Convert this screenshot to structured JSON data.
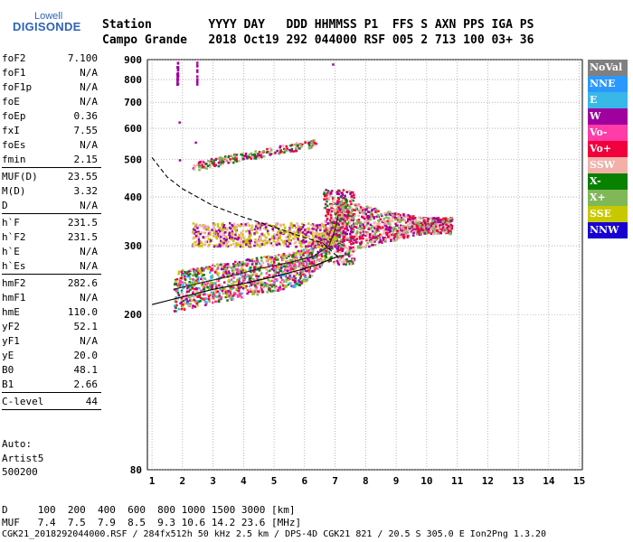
{
  "logo": {
    "line1": "Lowell",
    "line2": "DIGISONDE"
  },
  "header": {
    "row1": "Station        YYYY DAY   DDD HHMMSS P1  FFS S AXN PPS IGA PS",
    "row2": "Campo Grande   2018 Oct19 292 044000 RSF 005 2 713 100 03+ 36"
  },
  "params": [
    {
      "label": "foF2",
      "value": "7.100"
    },
    {
      "label": "foF1",
      "value": "N/A"
    },
    {
      "label": "foF1p",
      "value": "N/A"
    },
    {
      "label": "foE",
      "value": "N/A"
    },
    {
      "label": "foEp",
      "value": "0.36"
    },
    {
      "label": "fxI",
      "value": "7.55"
    },
    {
      "label": "foEs",
      "value": "N/A"
    },
    {
      "label": "fmin",
      "value": "2.15"
    },
    {
      "label": "MUF(D)",
      "value": "23.55"
    },
    {
      "label": "M(D)",
      "value": "3.32"
    },
    {
      "label": "D",
      "value": "N/A"
    },
    {
      "label": "h`F",
      "value": "231.5"
    },
    {
      "label": "h`F2",
      "value": "231.5"
    },
    {
      "label": "h`E",
      "value": "N/A"
    },
    {
      "label": "h`Es",
      "value": "N/A"
    },
    {
      "label": "hmF2",
      "value": "282.6"
    },
    {
      "label": "hmF1",
      "value": "N/A"
    },
    {
      "label": "hmE",
      "value": "110.0"
    },
    {
      "label": "yF2",
      "value": "52.1"
    },
    {
      "label": "yF1",
      "value": "N/A"
    },
    {
      "label": "yE",
      "value": "20.0"
    },
    {
      "label": "B0",
      "value": "48.1"
    },
    {
      "label": "B1",
      "value": "2.66"
    },
    {
      "label": "C-level",
      "value": "44"
    }
  ],
  "auto": {
    "line1": "Auto:",
    "line2": "Artist5",
    "line3": "500200"
  },
  "legend": [
    {
      "name": "NoVal",
      "color": "#808080"
    },
    {
      "name": "NNE",
      "color": "#2a98ff"
    },
    {
      "name": "E",
      "color": "#38b8e8"
    },
    {
      "name": "W",
      "color": "#a0009e"
    },
    {
      "name": "Vo-",
      "color": "#ff3ca8"
    },
    {
      "name": "Vo+",
      "color": "#f0003c"
    },
    {
      "name": "SSW",
      "color": "#f2b0a8"
    },
    {
      "name": "X-",
      "color": "#088000"
    },
    {
      "name": "X+",
      "color": "#80b858"
    },
    {
      "name": "SSE",
      "color": "#c8c800"
    },
    {
      "name": "NNW",
      "color": "#1800d0"
    }
  ],
  "footer": {
    "line1": "D     100  200  400  600  800 1000 1500 3000 [km]",
    "line2": "MUF   7.4  7.5  7.9  8.5  9.3 10.6 14.2 23.6 [MHz]",
    "line3": "CGK21_2018292044000.RSF / 284fx512h 50 kHz 2.5 km / DPS-4D CGK21 821 / 20.5 S 305.0 E Ion2Png 1.3.20"
  },
  "chart_data": {
    "type": "scatter",
    "title": "",
    "xlabel": "",
    "ylabel": "",
    "xlim": [
      0.85,
      15.1
    ],
    "ylim": [
      80,
      900
    ],
    "xticks": [
      1,
      2,
      3,
      4,
      5,
      6,
      7,
      8,
      9,
      10,
      11,
      12,
      13,
      14,
      15
    ],
    "yticks": [
      80,
      200,
      300,
      400,
      500,
      600,
      700,
      800,
      900
    ],
    "y_scale": "log",
    "grid": true,
    "legend_position": "right",
    "clusters": [
      {
        "name": "F-trace main",
        "x_range": [
          1.7,
          7.3
        ],
        "y_range": [
          215,
          330
        ],
        "colors": [
          "#a0009e",
          "#f0003c",
          "#088000",
          "#38b8e8",
          "#f2b0a8",
          "#80b858",
          "#c8c800",
          "#ff3ca8"
        ]
      },
      {
        "name": "F-trace cusp",
        "x_range": [
          6.6,
          7.6
        ],
        "y_range": [
          270,
          420
        ],
        "colors": [
          "#f0003c",
          "#a0009e",
          "#088000",
          "#f2b0a8"
        ]
      },
      {
        "name": "spread-F",
        "x_range": [
          7.0,
          10.8
        ],
        "y_range": [
          300,
          440
        ],
        "colors": [
          "#f2b0a8",
          "#a0009e",
          "#f0003c",
          "#80b858"
        ]
      },
      {
        "name": "upper haze",
        "x_range": [
          2.3,
          7.0
        ],
        "y_range": [
          300,
          345
        ],
        "colors": [
          "#f2b0a8",
          "#c8c800",
          "#a0009e"
        ]
      },
      {
        "name": "second hop",
        "x_range": [
          2.3,
          6.4
        ],
        "y_range": [
          480,
          580
        ],
        "colors": [
          "#f0003c",
          "#a0009e",
          "#088000",
          "#80b858",
          "#f2b0a8"
        ]
      },
      {
        "name": "high echoes",
        "x_range": [
          1.75,
          2.5
        ],
        "y_range": [
          780,
          900
        ],
        "colors": [
          "#a0009e"
        ]
      }
    ],
    "curves": [
      {
        "name": "true height profile",
        "style": "solid",
        "points": [
          [
            1,
            212
          ],
          [
            2,
            222
          ],
          [
            3,
            232
          ],
          [
            4,
            240
          ],
          [
            5,
            250
          ],
          [
            6,
            262
          ],
          [
            6.5,
            270
          ],
          [
            7.0,
            280
          ],
          [
            7.1,
            282.6
          ]
        ]
      },
      {
        "name": "MUF dashed",
        "style": "dashed",
        "points": [
          [
            1,
            505
          ],
          [
            1.5,
            450
          ],
          [
            2,
            420
          ],
          [
            3,
            380
          ],
          [
            4,
            355
          ],
          [
            5,
            335
          ],
          [
            6,
            315
          ],
          [
            6.6,
            305
          ],
          [
            7.0,
            285
          ],
          [
            7.1,
            282
          ]
        ]
      },
      {
        "name": "trace model",
        "style": "solid",
        "points": [
          [
            1.7,
            232
          ],
          [
            2.5,
            240
          ],
          [
            3.5,
            250
          ],
          [
            4.5,
            262
          ],
          [
            5.5,
            272
          ],
          [
            6.3,
            282
          ],
          [
            6.8,
            300
          ],
          [
            7.0,
            330
          ],
          [
            7.1,
            360
          ]
        ]
      }
    ]
  }
}
